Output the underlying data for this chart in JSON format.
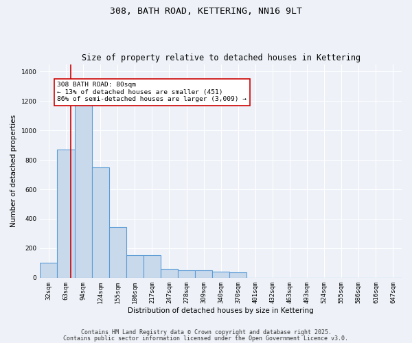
{
  "title_line1": "308, BATH ROAD, KETTERING, NN16 9LT",
  "title_line2": "Size of property relative to detached houses in Kettering",
  "xlabel": "Distribution of detached houses by size in Kettering",
  "ylabel": "Number of detached properties",
  "categories": [
    "32sqm",
    "63sqm",
    "94sqm",
    "124sqm",
    "155sqm",
    "186sqm",
    "217sqm",
    "247sqm",
    "278sqm",
    "309sqm",
    "340sqm",
    "370sqm",
    "401sqm",
    "432sqm",
    "463sqm",
    "493sqm",
    "524sqm",
    "555sqm",
    "586sqm",
    "616sqm",
    "647sqm"
  ],
  "values": [
    100,
    870,
    1230,
    750,
    345,
    155,
    155,
    60,
    50,
    50,
    40,
    35,
    0,
    0,
    0,
    0,
    0,
    0,
    0,
    0,
    0
  ],
  "bar_color": "#c9d9ec",
  "bar_edge_color": "#5b9bd5",
  "bar_linewidth": 0.8,
  "vline_x": 1.27,
  "vline_color": "#cc0000",
  "annotation_box_text": "308 BATH ROAD: 80sqm\n← 13% of detached houses are smaller (451)\n86% of semi-detached houses are larger (3,009) →",
  "ylim": [
    0,
    1450
  ],
  "yticks": [
    0,
    200,
    400,
    600,
    800,
    1000,
    1200,
    1400
  ],
  "bg_color": "#eef2f8",
  "plot_bg_color": "#eef2f8",
  "footer_line1": "Contains HM Land Registry data © Crown copyright and database right 2025.",
  "footer_line2": "Contains public sector information licensed under the Open Government Licence v3.0.",
  "grid_color": "#ffffff",
  "title_fontsize": 9.5,
  "subtitle_fontsize": 8.5,
  "axis_label_fontsize": 7.5,
  "tick_fontsize": 6.5,
  "annotation_fontsize": 6.8,
  "footer_fontsize": 6.0
}
